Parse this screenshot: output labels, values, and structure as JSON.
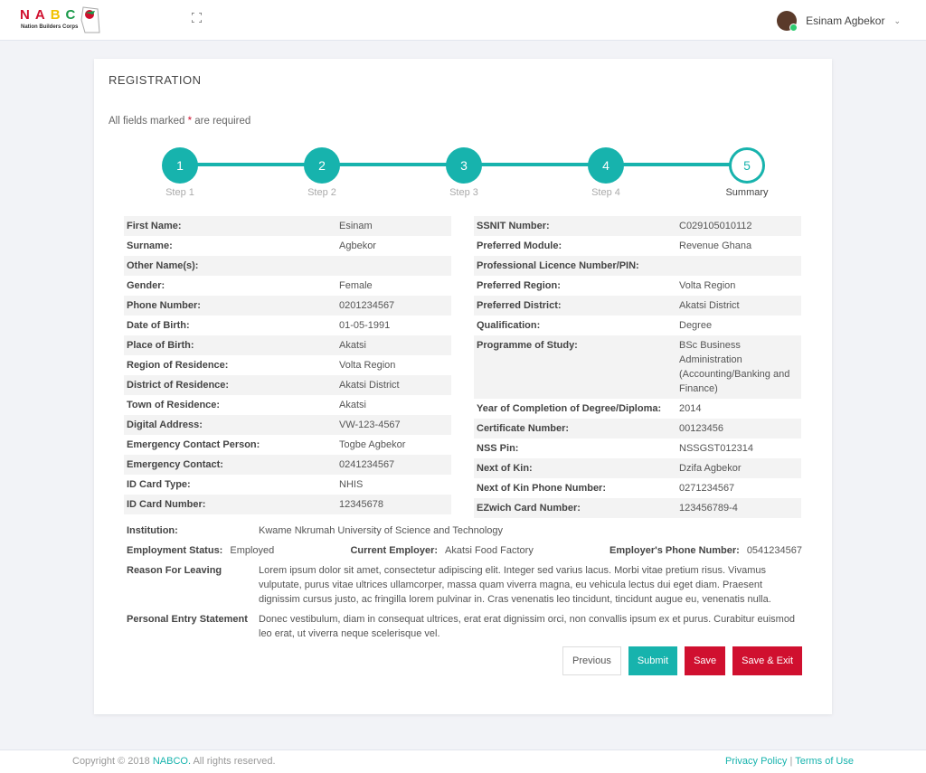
{
  "header": {
    "logo_text": "NABC",
    "logo_sub": "Nation Builders Corps",
    "user_name": "Esinam Agbekor"
  },
  "colors": {
    "accent": "#17b3ad",
    "danger": "#d0102f"
  },
  "page": {
    "title": "REGISTRATION",
    "required_note_pre": "All fields marked",
    "required_star": "*",
    "required_note_post": "are required"
  },
  "steps": [
    {
      "num": "1",
      "label": "Step 1"
    },
    {
      "num": "2",
      "label": "Step 2"
    },
    {
      "num": "3",
      "label": "Step 3"
    },
    {
      "num": "4",
      "label": "Step 4"
    },
    {
      "num": "5",
      "label": "Summary"
    }
  ],
  "left": [
    [
      "First Name:",
      "Esinam"
    ],
    [
      "Surname:",
      "Agbekor"
    ],
    [
      "Other Name(s):",
      ""
    ],
    [
      "Gender:",
      "Female"
    ],
    [
      "Phone Number:",
      "0201234567"
    ],
    [
      "Date of Birth:",
      "01-05-1991"
    ],
    [
      "Place of Birth:",
      "Akatsi"
    ],
    [
      "Region of Residence:",
      "Volta Region"
    ],
    [
      "District of Residence:",
      "Akatsi District"
    ],
    [
      "Town of Residence:",
      "Akatsi"
    ],
    [
      "Digital Address:",
      "VW-123-4567"
    ],
    [
      "Emergency Contact Person:",
      "Togbe Agbekor"
    ],
    [
      "Emergency Contact:",
      "0241234567"
    ],
    [
      "ID Card Type:",
      "NHIS"
    ],
    [
      "ID Card Number:",
      "12345678"
    ]
  ],
  "right": [
    [
      "SSNIT Number:",
      "C029105010112"
    ],
    [
      "Preferred Module:",
      "Revenue Ghana"
    ],
    [
      "Professional Licence Number/PIN:",
      ""
    ],
    [
      "Preferred Region:",
      "Volta Region"
    ],
    [
      "Preferred District:",
      "Akatsi District"
    ],
    [
      "Qualification:",
      "Degree"
    ],
    [
      "Programme of Study:",
      "BSc Business Administration (Accounting/Banking and Finance)"
    ],
    [
      "Year of Completion of Degree/Diploma:",
      "2014"
    ],
    [
      "Certificate Number:",
      "00123456"
    ],
    [
      "NSS Pin:",
      "NSSGST012314"
    ],
    [
      "Next of Kin:",
      "Dzifa Agbekor"
    ],
    [
      "Next of Kin Phone Number:",
      "0271234567"
    ],
    [
      "EZwich Card Number:",
      "123456789-4"
    ]
  ],
  "institution": {
    "label": "Institution:",
    "value": "Kwame Nkrumah University of Science and Technology"
  },
  "employment": {
    "status_label": "Employment Status:",
    "status": "Employed",
    "employer_label": "Current Employer:",
    "employer": "Akatsi Food Factory",
    "phone_label": "Employer's Phone Number:",
    "phone": "0541234567"
  },
  "reason": {
    "label": "Reason For Leaving",
    "value": "Lorem ipsum dolor sit amet, consectetur adipiscing elit. Integer sed varius lacus. Morbi vitae pretium risus. Vivamus vulputate, purus vitae ultrices ullamcorper, massa quam viverra magna, eu vehicula lectus dui eget diam. Praesent dignissim cursus justo, ac fringilla lorem pulvinar in. Cras venenatis leo tincidunt, tincidunt augue eu, venenatis nulla."
  },
  "statement": {
    "label": "Personal Entry Statement",
    "value": "Donec vestibulum, diam in consequat ultrices, erat erat dignissim orci, non convallis ipsum ex et purus. Curabitur euismod leo erat, ut viverra neque scelerisque vel."
  },
  "buttons": {
    "previous": "Previous",
    "submit": "Submit",
    "save": "Save",
    "save_exit": "Save & Exit"
  },
  "footer": {
    "copyright_pre": "Copyright © 2018",
    "brand": "NABCO.",
    "copyright_post": "All rights reserved.",
    "privacy": "Privacy Policy",
    "sep": "|",
    "terms": "Terms of Use"
  }
}
